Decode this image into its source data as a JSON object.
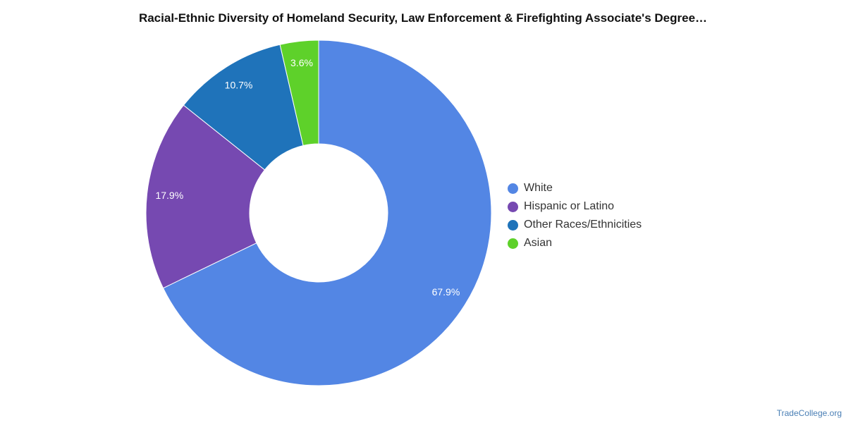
{
  "chart_data": {
    "type": "pie",
    "title": "Racial-Ethnic Diversity of Homeland Security, Law Enforcement & Firefighting Associate's Degree…",
    "labels": [
      "White",
      "Hispanic or Latino",
      "Other Races/Ethnicities",
      "Asian"
    ],
    "values": [
      67.9,
      17.9,
      10.7,
      3.6
    ],
    "value_labels": [
      "67.9%",
      "17.9%",
      "10.7%",
      "3.6%"
    ],
    "colors": [
      "#5386e4",
      "#7649b1",
      "#1f73ba",
      "#5ed12a"
    ],
    "donut": true,
    "legend_position": "right"
  },
  "watermark": "TradeCollege.org"
}
